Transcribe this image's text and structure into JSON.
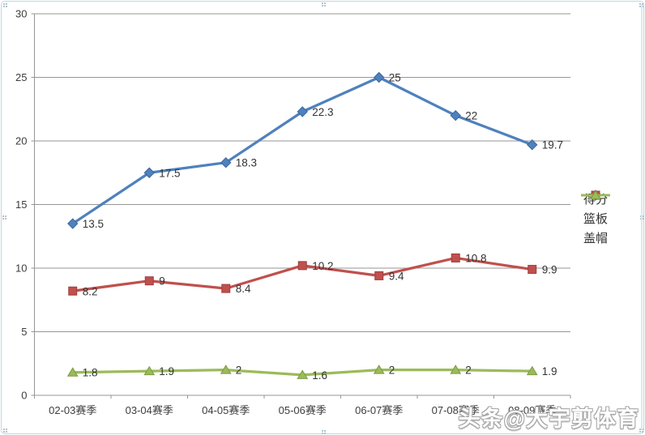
{
  "chart_data": {
    "type": "line",
    "title": "",
    "xlabel": "",
    "ylabel": "",
    "ylim": [
      0,
      30
    ],
    "ytick_step": 5,
    "yticks": [
      "0",
      "5",
      "10",
      "15",
      "20",
      "25",
      "30"
    ],
    "grid": true,
    "legend_position": "right",
    "categories": [
      "02-03赛季",
      "03-04赛季",
      "04-05赛季",
      "05-06赛季",
      "06-07赛季",
      "07-08赛季",
      "08-09赛季"
    ],
    "series": [
      {
        "key": "points",
        "name": "得分",
        "marker": "diamond",
        "color": "#4F81BD",
        "marker_stroke": "#3A679C",
        "values": [
          13.5,
          17.5,
          18.3,
          22.3,
          25,
          22,
          19.7
        ],
        "labels": [
          "13.5",
          "17.5",
          "18.3",
          "22.3",
          "25",
          "22",
          "19.7"
        ]
      },
      {
        "key": "rebounds",
        "name": "篮板",
        "marker": "square",
        "color": "#C0504D",
        "marker_stroke": "#99403E",
        "values": [
          8.2,
          9,
          8.4,
          10.2,
          9.4,
          10.8,
          9.9
        ],
        "labels": [
          "8.2",
          "9",
          "8.4",
          "10.2",
          "9.4",
          "10.8",
          "9.9"
        ]
      },
      {
        "key": "blocks",
        "name": "盖帽",
        "marker": "triangle",
        "color": "#9BBB59",
        "marker_stroke": "#7C9A43",
        "values": [
          1.8,
          1.9,
          2,
          1.6,
          2,
          2,
          1.9
        ],
        "labels": [
          "1.8",
          "1.9",
          "2",
          "1.6",
          "2",
          "2",
          "1.9"
        ]
      }
    ]
  },
  "watermark": {
    "text": "头条@大宇剪体育",
    "text_color": "#ffffff",
    "outline_color": "#a7a7a7"
  },
  "colors": {
    "gridline": "#969696",
    "axis": "#969696",
    "tick_label": "#3d3d3d",
    "data_label": "#333333",
    "frame_border": "#c3d6de",
    "selection_handle": "#aec4cf",
    "background": "#ffffff"
  }
}
